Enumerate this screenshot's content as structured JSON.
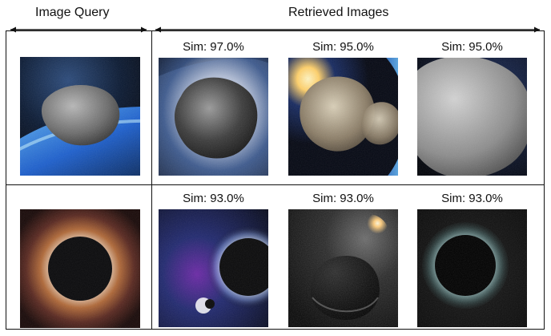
{
  "header": {
    "image_query_label": "Image Query",
    "retrieved_images_label": "Retrieved Images"
  },
  "rows": [
    {
      "query": {
        "icon": "asteroid-image"
      },
      "results": [
        {
          "sim": "Sim: 97.0%",
          "icon": "asteroid-image"
        },
        {
          "sim": "Sim: 95.0%",
          "icon": "asteroid-image"
        },
        {
          "sim": "Sim: 95.0%",
          "icon": "asteroid-image"
        }
      ]
    },
    {
      "query": {
        "icon": "black-hole-image"
      },
      "results": [
        {
          "sim": "Sim: 93.0%",
          "icon": "eclipse-image"
        },
        {
          "sim": "Sim: 93.0%",
          "icon": "planet-image"
        },
        {
          "sim": "Sim: 93.0%",
          "icon": "eclipse-image"
        }
      ]
    }
  ]
}
